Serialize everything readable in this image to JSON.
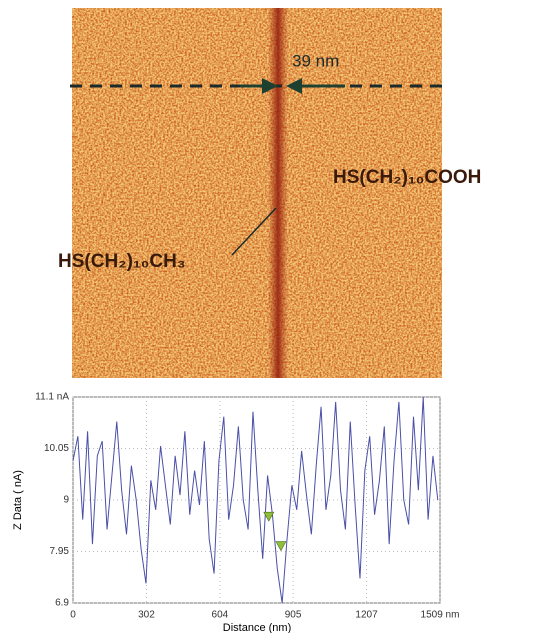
{
  "image": {
    "scale_label": "39 nm",
    "label_right": "HS(CH₂)₁₀COOH",
    "label_left": "HS(CH₂)₁₀CH₃"
  },
  "chart_data": {
    "type": "line",
    "ylabel": "Z Data ( nA)",
    "xlabel": "Distance (nm)",
    "xlim": [
      0,
      1509
    ],
    "ylim": [
      6.9,
      11.1
    ],
    "xticks": [
      0,
      302,
      604,
      905,
      1207,
      {
        "value": 1509,
        "label": "1509 nm"
      }
    ],
    "yticks": [
      6.9,
      7.95,
      9,
      10.05,
      {
        "value": 11.1,
        "label": "11.1 nA"
      }
    ],
    "grid": true,
    "x": [
      0,
      20,
      40,
      60,
      80,
      100,
      120,
      140,
      160,
      180,
      200,
      220,
      240,
      260,
      280,
      300,
      320,
      340,
      360,
      380,
      400,
      420,
      440,
      460,
      480,
      500,
      520,
      540,
      560,
      580,
      600,
      620,
      640,
      660,
      680,
      700,
      720,
      740,
      760,
      780,
      800,
      820,
      840,
      860,
      880,
      900,
      920,
      940,
      960,
      980,
      1000,
      1020,
      1040,
      1060,
      1080,
      1100,
      1120,
      1140,
      1160,
      1180,
      1200,
      1220,
      1240,
      1260,
      1280,
      1300,
      1320,
      1340,
      1360,
      1380,
      1400,
      1420,
      1440,
      1460,
      1480,
      1500
    ],
    "series": [
      {
        "color": "#4a4fa8",
        "values": [
          9.8,
          10.3,
          8.6,
          10.4,
          8.1,
          9.9,
          10.2,
          8.4,
          9.5,
          10.6,
          9.2,
          8.3,
          9.7,
          9.0,
          8.0,
          7.3,
          9.4,
          8.8,
          10.1,
          9.3,
          8.5,
          9.9,
          9.1,
          10.4,
          8.7,
          9.6,
          8.9,
          10.2,
          8.2,
          7.5,
          9.8,
          10.7,
          8.6,
          9.3,
          10.5,
          9.0,
          8.4,
          10.8,
          9.2,
          7.8,
          9.5,
          8.7,
          7.6,
          6.9,
          8.2,
          9.3,
          8.8,
          10.0,
          9.1,
          8.3,
          9.7,
          10.9,
          8.8,
          9.5,
          11.0,
          9.2,
          8.4,
          10.6,
          8.9,
          7.4,
          9.6,
          10.3,
          8.7,
          9.4,
          10.5,
          8.1,
          9.8,
          11.0,
          9.0,
          8.5,
          10.7,
          9.2,
          11.1,
          8.6,
          9.9,
          9.0
        ]
      }
    ],
    "markers": {
      "color": "#8fbf3a",
      "x": [
        805,
        855
      ],
      "values": [
        8.65,
        8.05
      ]
    }
  }
}
